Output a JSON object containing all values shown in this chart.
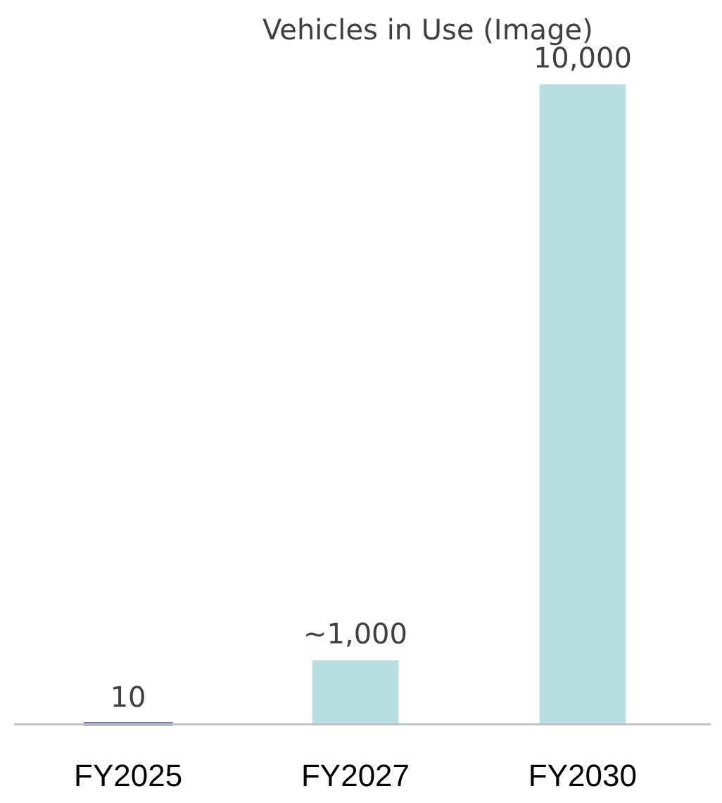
{
  "chart_data": {
    "type": "bar",
    "title": "Vehicles in Use (Image)",
    "categories": [
      "FY2025",
      "FY2027",
      "FY2030"
    ],
    "values": [
      10,
      1000,
      10000
    ],
    "colors": [
      "#4a7dc9",
      "#b9dfe2",
      "#b9dfe2"
    ],
    "value_labels": [
      "10",
      "~1,000",
      "10,000"
    ],
    "ylim": [
      0,
      10000
    ],
    "tick_labels": "x"
  }
}
